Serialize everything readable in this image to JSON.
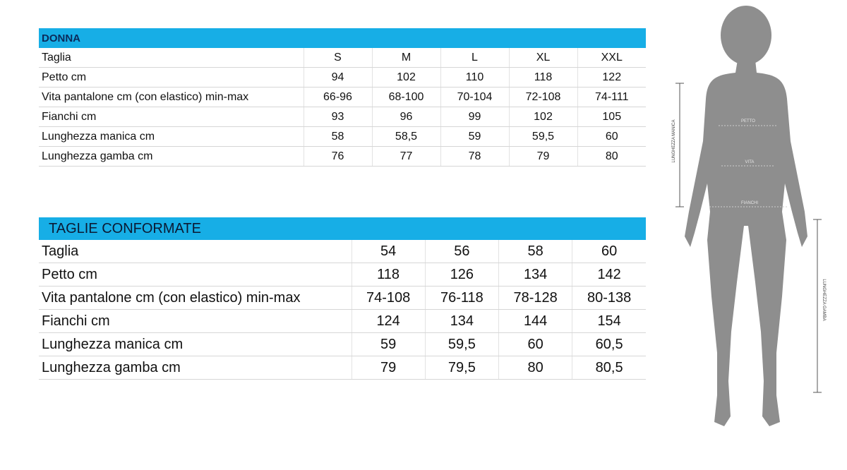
{
  "donna": {
    "title": "DONNA",
    "headers": [
      "Taglia",
      "S",
      "M",
      "L",
      "XL",
      "XXL"
    ],
    "rows": [
      [
        "Petto cm",
        "94",
        "102",
        "110",
        "118",
        "122"
      ],
      [
        "Vita pantalone cm (con elastico) min-max",
        "66-96",
        "68-100",
        "70-104",
        "72-108",
        "74-111"
      ],
      [
        "Fianchi cm",
        "93",
        "96",
        "99",
        "102",
        "105"
      ],
      [
        "Lunghezza manica cm",
        "58",
        "58,5",
        "59",
        "59,5",
        "60"
      ],
      [
        "Lunghezza gamba cm",
        "76",
        "77",
        "78",
        "79",
        "80"
      ]
    ]
  },
  "conformate": {
    "title": "TAGLIE CONFORMATE",
    "headers": [
      "Taglia",
      "54",
      "56",
      "58",
      "60"
    ],
    "rows": [
      [
        "Petto cm",
        "118",
        "126",
        "134",
        "142"
      ],
      [
        "Vita pantalone cm (con elastico) min-max",
        "74-108",
        "76-118",
        "78-128",
        "80-138"
      ],
      [
        "Fianchi cm",
        "124",
        "134",
        "144",
        "154"
      ],
      [
        "Lunghezza manica cm",
        "59",
        "59,5",
        "60",
        "60,5"
      ],
      [
        "Lunghezza gamba cm",
        "79",
        "79,5",
        "80",
        "80,5"
      ]
    ]
  },
  "figure": {
    "labels": {
      "petto": "PETTO",
      "vita": "VITA",
      "fianchi": "FIANCHI",
      "manica": "LUNGHEZZA MANICA",
      "gamba": "LUNGHEZZA GAMBA"
    }
  },
  "colors": {
    "header": "#17aee6",
    "silhouette": "#8e8e8e"
  }
}
